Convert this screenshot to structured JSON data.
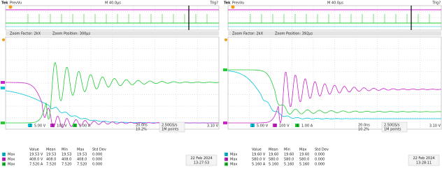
{
  "panels": [
    {
      "header": {
        "brand": "Tek",
        "mode": "PrevVu",
        "timebase": "M 40.0µs",
        "trigger": "Trig?"
      },
      "zoom": {
        "factor": "Zoom Factor: 2kX",
        "position": "Zoom Position: 300µs"
      },
      "channels": [
        {
          "id": "2",
          "scale": "5.00 V"
        },
        {
          "id": "3",
          "scale": "100 V"
        },
        {
          "id": "4",
          "scale": "1.00 A"
        }
      ],
      "acquisition": {
        "rate": "2.50GS/s",
        "points": "1M points",
        "time": "20.0ns",
        "percent": "10.2%",
        "trigger_level": "3.10 V"
      },
      "table": {
        "headers": [
          "Value",
          "Mean",
          "Min",
          "Max",
          "Std Dev"
        ],
        "rows": [
          [
            "2",
            "Max",
            "19.53 V",
            "19.53",
            "19.53",
            "19.53",
            "0.000"
          ],
          [
            "3",
            "Max",
            "408.0 V",
            "408.0",
            "408.0",
            "408.0",
            "0.000"
          ],
          [
            "4",
            "Max",
            "7.520 A",
            "7.520",
            "7.520",
            "7.520",
            "0.000"
          ]
        ]
      },
      "date": "22 Feb 2024",
      "time": "13:27:53"
    },
    {
      "header": {
        "brand": "Tek",
        "mode": "PrevVu",
        "timebase": "M 40.0µs",
        "trigger": "Trig?"
      },
      "zoom": {
        "factor": "Zoom Factor: 2kX",
        "position": "Zoom Position: 392µs"
      },
      "channels": [
        {
          "id": "2",
          "scale": "5.00 V"
        },
        {
          "id": "3",
          "scale": "100 V"
        },
        {
          "id": "4",
          "scale": "1.00 A"
        }
      ],
      "acquisition": {
        "rate": "2.50GS/s",
        "points": "1M points",
        "time": "20.0ns",
        "percent": "10.2%",
        "trigger_level": "3.10 V"
      },
      "table": {
        "headers": [
          "Value",
          "Mean",
          "Min",
          "Max",
          "Std Dev"
        ],
        "rows": [
          [
            "2",
            "Max",
            "19.60 V",
            "19.60",
            "19.60",
            "19.60",
            "0.000"
          ],
          [
            "3",
            "Max",
            "580.0 V",
            "580.0",
            "580.0",
            "580.0",
            "0.000"
          ],
          [
            "4",
            "Max",
            "5.160 A",
            "5.160",
            "5.160",
            "5.160",
            "0.000"
          ]
        ]
      },
      "date": "22 Feb 2024",
      "time": "13:28:11"
    }
  ]
}
